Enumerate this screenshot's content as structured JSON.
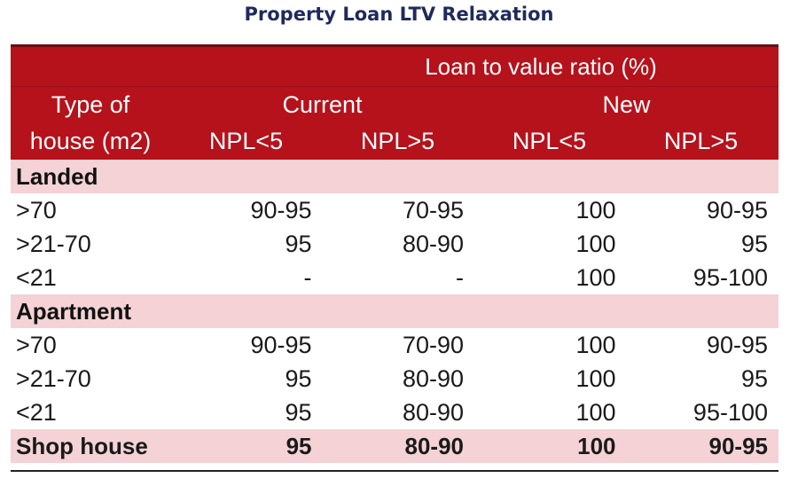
{
  "title": "Property Loan LTV Relaxation",
  "header": {
    "group_label": "Loan to value ratio (%)",
    "col0_line1": "Type of",
    "col0_line2": "house (m2)",
    "current": "Current",
    "new": "New",
    "sub": [
      "NPL<5",
      "NPL>5",
      "NPL<5",
      "NPL>5"
    ]
  },
  "sections": [
    {
      "name": "Landed",
      "rows": [
        {
          "label": ">70",
          "values": [
            "90-95",
            "70-95",
            "100",
            "90-95"
          ]
        },
        {
          "label": ">21-70",
          "values": [
            "95",
            "80-90",
            "100",
            "95"
          ]
        },
        {
          "label": "<21",
          "values": [
            "-",
            "-",
            "100",
            "95-100"
          ]
        }
      ]
    },
    {
      "name": "Apartment",
      "rows": [
        {
          "label": ">70",
          "values": [
            "90-95",
            "70-90",
            "100",
            "90-95"
          ]
        },
        {
          "label": ">21-70",
          "values": [
            "95",
            "80-90",
            "100",
            "95"
          ]
        },
        {
          "label": "<21",
          "values": [
            "95",
            "80-90",
            "100",
            "95-100"
          ]
        }
      ]
    }
  ],
  "shop_house": {
    "label": "Shop house",
    "values": [
      "95",
      "80-90",
      "100",
      "90-95"
    ]
  },
  "colors": {
    "header_red": "#b5121b",
    "section_pink": "#f4d2d5",
    "title_navy": "#1f2a5c"
  }
}
